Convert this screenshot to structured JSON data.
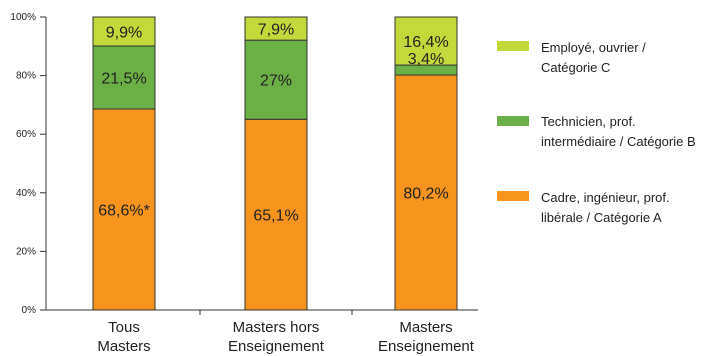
{
  "chart_data": {
    "type": "bar",
    "stacked": true,
    "title": "",
    "xlabel": "",
    "ylabel": "",
    "ylim": [
      0,
      100
    ],
    "y_ticks": [
      "0%",
      "20%",
      "40%",
      "60%",
      "80%",
      "100%"
    ],
    "categories": [
      [
        "Tous",
        "Masters"
      ],
      [
        "Masters hors",
        "Enseignement"
      ],
      [
        "Masters",
        "Enseignement"
      ]
    ],
    "series": [
      {
        "name": [
          "Cadre, ingénieur, prof.",
          "libérale / Catégorie A"
        ],
        "color": "#F7941D",
        "values": [
          68.6,
          65.1,
          80.2
        ],
        "labels": [
          "68,6%*",
          "65,1%",
          "80,2%"
        ]
      },
      {
        "name": [
          "Technicien, prof.",
          "intermédiaire / Catégorie B"
        ],
        "color": "#6AB046",
        "values": [
          21.5,
          27,
          3.4
        ],
        "labels": [
          "21,5%",
          "27%",
          "3,4%"
        ]
      },
      {
        "name": [
          "Employé, ouvrier /",
          "Catégorie C"
        ],
        "color": "#C3D83A",
        "values": [
          9.9,
          7.9,
          16.4
        ],
        "labels": [
          "9,9%",
          "7,9%",
          "16,4%"
        ]
      }
    ],
    "legend_position": "right",
    "grid": false
  }
}
